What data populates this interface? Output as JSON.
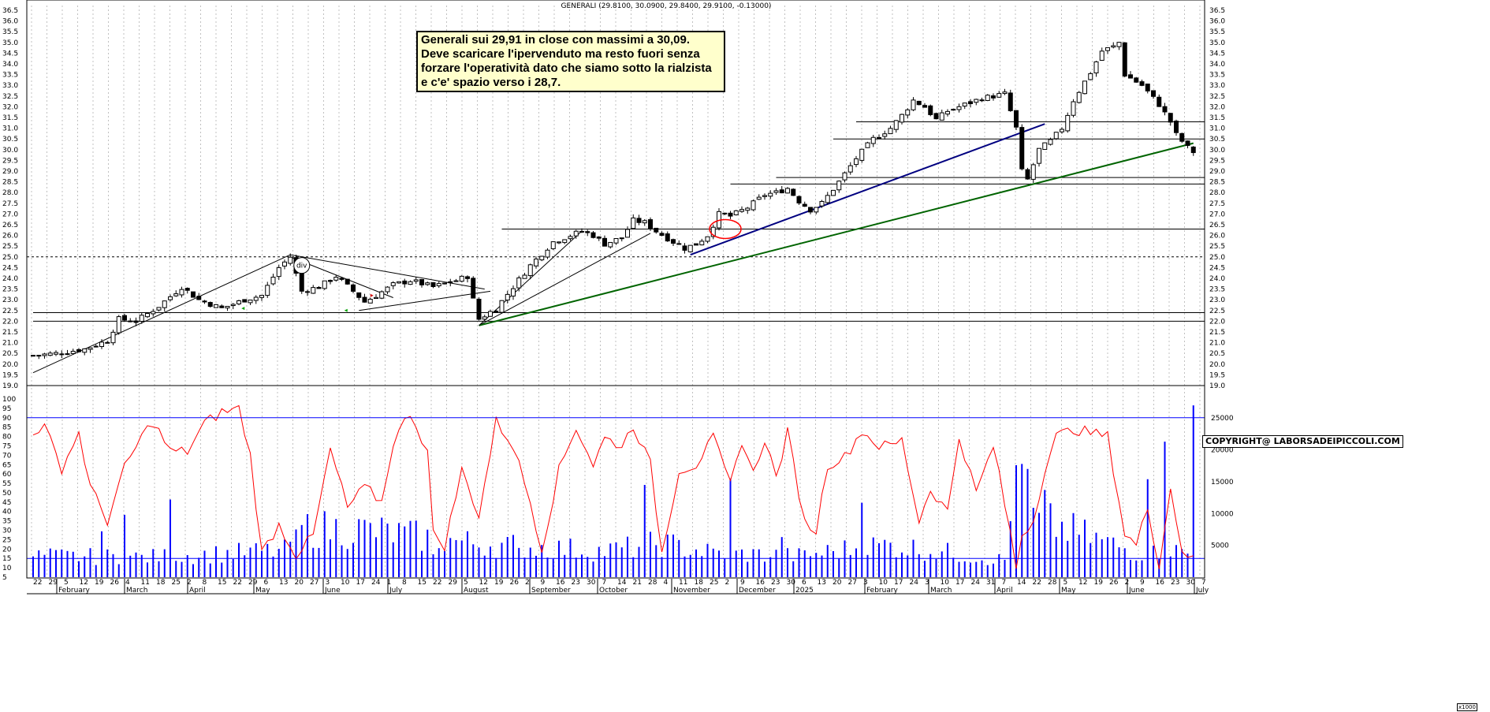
{
  "header": {
    "title": "GENERALI (29.8100, 30.0900, 29.8400, 29.9100, -0.13000)"
  },
  "annotation": {
    "lines": [
      "Generali sui 29,91 in close con massimi a 30,09.",
      "Deve scaricare l'ipervenduto ma resto fuori senza",
      "forzare l'operatività dato che siamo sotto la rialzista",
      "e c'e' spazio verso i 28,7."
    ]
  },
  "copyright": "COPYRIGHT@ LABORSADEIPICCOLI.COM",
  "divergence_label": "div",
  "volume_scale_tag": "x1000",
  "colors": {
    "candle": "#000000",
    "oscillator": "#ff0000",
    "volume": "#0000ff",
    "trend_green": "#006400",
    "trend_blue": "#000080",
    "grid": "#c0c0c0",
    "circle": "#ff0000"
  },
  "chart_data": {
    "type": "candlestick",
    "price_axis": {
      "min": 19.0,
      "max": 36.5,
      "step": 0.5,
      "ticks": [
        "19.0",
        "19.5",
        "20.0",
        "20.5",
        "21.0",
        "21.5",
        "22.0",
        "22.5",
        "23.0",
        "23.5",
        "24.0",
        "24.5",
        "25.0",
        "25.5",
        "26.0",
        "26.5",
        "27.0",
        "27.5",
        "28.0",
        "28.5",
        "29.0",
        "29.5",
        "30.0",
        "30.5",
        "31.0",
        "31.5",
        "32.0",
        "32.5",
        "33.0",
        "33.5",
        "34.0",
        "34.5",
        "35.0",
        "35.5",
        "36.0",
        "36.5"
      ]
    },
    "oscillator_axis": {
      "min": 5,
      "max": 100,
      "step": 5,
      "ticks": [
        "5",
        "10",
        "15",
        "20",
        "25",
        "30",
        "35",
        "40",
        "45",
        "50",
        "55",
        "60",
        "65",
        "70",
        "75",
        "80",
        "85",
        "90",
        "95",
        "100"
      ],
      "levels": [
        15,
        90
      ]
    },
    "volume_axis": {
      "min": 0,
      "max": 28000,
      "ticks": [
        "5000",
        "10000",
        "15000",
        "20000",
        "25000"
      ]
    },
    "date_ticks": [
      "22",
      "29",
      "5",
      "12",
      "19",
      "26",
      "4",
      "11",
      "18",
      "25",
      "2",
      "8",
      "15",
      "22",
      "29",
      "6",
      "13",
      "20",
      "27",
      "3",
      "10",
      "17",
      "24",
      "1",
      "8",
      "15",
      "22",
      "29",
      "5",
      "12",
      "19",
      "26",
      "2",
      "9",
      "16",
      "23",
      "30",
      "7",
      "14",
      "21",
      "28",
      "4",
      "11",
      "18",
      "25",
      "2",
      "9",
      "16",
      "23",
      "30",
      "6",
      "13",
      "20",
      "27",
      "3",
      "10",
      "17",
      "24",
      "3",
      "10",
      "17",
      "24",
      "31",
      "7",
      "14",
      "22",
      "28",
      "5",
      "12",
      "19",
      "26",
      "2",
      "9",
      "16",
      "23",
      "30",
      "7"
    ],
    "month_labels": [
      "February",
      "March",
      "April",
      "May",
      "June",
      "July",
      "August",
      "September",
      "October",
      "November",
      "December",
      "2025",
      "February",
      "March",
      "April",
      "May",
      "June",
      "July"
    ],
    "price_anchors": [
      [
        0,
        20.4
      ],
      [
        4,
        20.5
      ],
      [
        9,
        20.7
      ],
      [
        13,
        21.1
      ],
      [
        15,
        22.1
      ],
      [
        18,
        22.0
      ],
      [
        22,
        22.7
      ],
      [
        26,
        23.6
      ],
      [
        29,
        23.0
      ],
      [
        33,
        22.6
      ],
      [
        37,
        23.0
      ],
      [
        40,
        23.2
      ],
      [
        43,
        24.5
      ],
      [
        45,
        25.0
      ],
      [
        47,
        23.4
      ],
      [
        50,
        23.6
      ],
      [
        53,
        24.1
      ],
      [
        56,
        23.4
      ],
      [
        58,
        22.9
      ],
      [
        60,
        23.2
      ],
      [
        63,
        23.7
      ],
      [
        66,
        23.9
      ],
      [
        70,
        23.6
      ],
      [
        74,
        23.9
      ],
      [
        76,
        24.1
      ],
      [
        77,
        23.0
      ],
      [
        78,
        22.1
      ],
      [
        81,
        22.6
      ],
      [
        84,
        23.6
      ],
      [
        87,
        24.6
      ],
      [
        91,
        25.7
      ],
      [
        94,
        26.0
      ],
      [
        96,
        26.2
      ],
      [
        98,
        26.0
      ],
      [
        100,
        25.6
      ],
      [
        103,
        25.9
      ],
      [
        105,
        26.7
      ],
      [
        107,
        26.6
      ],
      [
        109,
        26.2
      ],
      [
        112,
        25.7
      ],
      [
        114,
        25.4
      ],
      [
        116,
        25.6
      ],
      [
        118,
        26.0
      ],
      [
        120,
        27.0
      ],
      [
        122,
        26.9
      ],
      [
        125,
        27.3
      ],
      [
        128,
        27.9
      ],
      [
        130,
        28.0
      ],
      [
        132,
        28.2
      ],
      [
        134,
        27.6
      ],
      [
        136,
        27.2
      ],
      [
        138,
        27.5
      ],
      [
        141,
        28.5
      ],
      [
        144,
        29.6
      ],
      [
        147,
        30.5
      ],
      [
        150,
        31.0
      ],
      [
        152,
        31.6
      ],
      [
        154,
        32.3
      ],
      [
        156,
        32.0
      ],
      [
        158,
        31.4
      ],
      [
        160,
        31.8
      ],
      [
        163,
        32.1
      ],
      [
        166,
        32.4
      ],
      [
        170,
        32.6
      ],
      [
        172,
        31.0
      ],
      [
        173,
        29.0
      ],
      [
        174,
        28.6
      ],
      [
        176,
        30.0
      ],
      [
        178,
        30.4
      ],
      [
        180,
        31.0
      ],
      [
        182,
        32.3
      ],
      [
        185,
        33.6
      ],
      [
        187,
        34.6
      ],
      [
        189,
        34.8
      ],
      [
        190,
        35.0
      ],
      [
        191,
        33.5
      ],
      [
        194,
        33.0
      ],
      [
        197,
        32.1
      ],
      [
        199,
        31.3
      ],
      [
        200,
        30.7
      ],
      [
        201,
        30.4
      ],
      [
        202,
        30.1
      ],
      [
        203,
        29.9
      ]
    ],
    "oscillator_anchors": [
      [
        0,
        83
      ],
      [
        2,
        85
      ],
      [
        5,
        63
      ],
      [
        8,
        82
      ],
      [
        10,
        53
      ],
      [
        13,
        35
      ],
      [
        16,
        63
      ],
      [
        19,
        80
      ],
      [
        21,
        88
      ],
      [
        24,
        72
      ],
      [
        27,
        72
      ],
      [
        30,
        87
      ],
      [
        33,
        93
      ],
      [
        36,
        95
      ],
      [
        38,
        70
      ],
      [
        40,
        18
      ],
      [
        43,
        33
      ],
      [
        46,
        17
      ],
      [
        49,
        27
      ],
      [
        52,
        73
      ],
      [
        55,
        42
      ],
      [
        58,
        53
      ],
      [
        61,
        45
      ],
      [
        63,
        77
      ],
      [
        66,
        93
      ],
      [
        69,
        72
      ],
      [
        70,
        28
      ],
      [
        72,
        22
      ],
      [
        75,
        62
      ],
      [
        78,
        38
      ],
      [
        81,
        88
      ],
      [
        84,
        75
      ],
      [
        87,
        45
      ],
      [
        89,
        20
      ],
      [
        92,
        62
      ],
      [
        95,
        85
      ],
      [
        98,
        65
      ],
      [
        100,
        79
      ],
      [
        103,
        75
      ],
      [
        105,
        86
      ],
      [
        108,
        65
      ],
      [
        110,
        18
      ],
      [
        113,
        62
      ],
      [
        116,
        65
      ],
      [
        119,
        79
      ],
      [
        122,
        54
      ],
      [
        124,
        78
      ],
      [
        126,
        60
      ],
      [
        128,
        79
      ],
      [
        130,
        58
      ],
      [
        132,
        82
      ],
      [
        135,
        34
      ],
      [
        137,
        30
      ],
      [
        139,
        65
      ],
      [
        142,
        69
      ],
      [
        145,
        83
      ],
      [
        148,
        75
      ],
      [
        150,
        75
      ],
      [
        152,
        78
      ],
      [
        155,
        35
      ],
      [
        157,
        52
      ],
      [
        160,
        40
      ],
      [
        162,
        80
      ],
      [
        165,
        50
      ],
      [
        168,
        75
      ],
      [
        171,
        28
      ],
      [
        172,
        10
      ],
      [
        173,
        28
      ],
      [
        175,
        35
      ],
      [
        177,
        63
      ],
      [
        179,
        80
      ],
      [
        182,
        84
      ],
      [
        185,
        82
      ],
      [
        188,
        80
      ],
      [
        191,
        28
      ],
      [
        193,
        22
      ],
      [
        195,
        42
      ],
      [
        197,
        12
      ],
      [
        199,
        52
      ],
      [
        201,
        20
      ],
      [
        203,
        14
      ]
    ],
    "volume_anchors": [
      [
        0,
        3500
      ],
      [
        20,
        3300
      ],
      [
        44,
        4400
      ],
      [
        46,
        8100
      ],
      [
        58,
        7800
      ],
      [
        77,
        5600
      ],
      [
        100,
        4300
      ],
      [
        110,
        5600
      ],
      [
        119,
        4000
      ],
      [
        134,
        3500
      ],
      [
        146,
        5100
      ],
      [
        150,
        5300
      ],
      [
        170,
        2800
      ],
      [
        172,
        15500
      ],
      [
        173,
        15700
      ],
      [
        174,
        10000
      ],
      [
        195,
        3500
      ],
      [
        198,
        4800
      ],
      [
        201,
        4100
      ],
      [
        203,
        3700
      ]
    ],
    "volume_spikes": [
      [
        12,
        7200
      ],
      [
        16,
        9800
      ],
      [
        24,
        12200
      ],
      [
        46,
        7500
      ],
      [
        70,
        3600
      ],
      [
        85,
        4600
      ],
      [
        107,
        14500
      ],
      [
        122,
        15500
      ],
      [
        131,
        6300
      ],
      [
        145,
        11700
      ],
      [
        172,
        17600
      ],
      [
        173,
        17800
      ],
      [
        174,
        17000
      ],
      [
        175,
        10900
      ],
      [
        176,
        10100
      ],
      [
        177,
        13700
      ],
      [
        195,
        15400
      ],
      [
        198,
        21300
      ],
      [
        203,
        27000
      ]
    ],
    "horizontal_levels": [
      22.0,
      22.4,
      25.0,
      26.3,
      28.4,
      28.7,
      30.5,
      31.3
    ],
    "trendlines": [
      {
        "from": [
          0,
          19.6
        ],
        "to": [
          45,
          25.1
        ]
      },
      {
        "from": [
          78,
          21.8
        ],
        "to": [
          108,
          26.1
        ]
      },
      {
        "from": [
          78,
          21.8
        ],
        "to": [
          203,
          30.3
        ]
      },
      {
        "from": [
          115,
          25.1
        ],
        "to": [
          177,
          31.2
        ]
      }
    ]
  }
}
